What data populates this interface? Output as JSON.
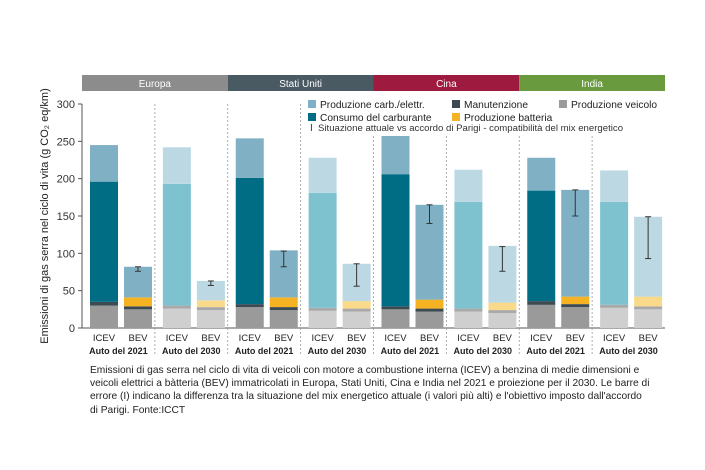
{
  "chart_data": {
    "type": "bar",
    "stacked": true,
    "ylabel": "Emissioni di gas serra nel ciclo di vita (g CO₂ eq/km)",
    "ylim": [
      0,
      300
    ],
    "yticks": [
      0,
      50,
      100,
      150,
      200,
      250,
      300
    ],
    "regions": [
      {
        "name": "Europa",
        "color": "#8c8c8c"
      },
      {
        "name": "Stati Uniti",
        "color": "#4a5a63"
      },
      {
        "name": "Cina",
        "color": "#9e1a3f"
      },
      {
        "name": "India",
        "color": "#6a9a3e"
      }
    ],
    "groups": [
      "Auto del 2021",
      "Auto del 2030"
    ],
    "vehicles": [
      "ICEV",
      "BEV"
    ],
    "legend": [
      {
        "key": "fuelprod",
        "label": "Produzione carb./elettr.",
        "color": "#7fb0c4"
      },
      {
        "key": "maint",
        "label": "Manutenzione",
        "color": "#3d4a52"
      },
      {
        "key": "vehicle",
        "label": "Produzione veicolo",
        "color": "#9a9a9a"
      },
      {
        "key": "fuel",
        "label": "Consumo del carburante",
        "color": "#006d85"
      },
      {
        "key": "battery",
        "label": "Produzione batteria",
        "color": "#f5b324"
      },
      {
        "key": "errbar",
        "label": "Situazione attuale  vs  accordo di Parigi - compatibilità del mix energetico",
        "symbol": "I"
      }
    ],
    "series_keys": [
      "vehicle",
      "maint",
      "battery",
      "fuel",
      "fuelprod"
    ],
    "bars": [
      {
        "region": "Europa",
        "group": "Auto del 2021",
        "label": "ICEV",
        "vehicle": 30,
        "maint": 5,
        "battery": 0,
        "fuel": 161,
        "fuelprod": 49,
        "err": null
      },
      {
        "region": "Europa",
        "group": "Auto del 2021",
        "label": "BEV",
        "vehicle": 25,
        "maint": 4,
        "battery": 12,
        "fuel": 0,
        "fuelprod": 41,
        "err": [
          76,
          82
        ]
      },
      {
        "region": "Europa",
        "group": "Auto del 2030",
        "label": "ICEV",
        "vehicle": 26,
        "maint": 4,
        "battery": 0,
        "fuel": 163,
        "fuelprod": 49,
        "err": null
      },
      {
        "region": "Europa",
        "group": "Auto del 2030",
        "label": "BEV",
        "vehicle": 24,
        "maint": 4,
        "battery": 9,
        "fuel": 0,
        "fuelprod": 26,
        "err": [
          57,
          63
        ]
      },
      {
        "region": "Stati Uniti",
        "group": "Auto del 2021",
        "label": "ICEV",
        "vehicle": 28,
        "maint": 4,
        "battery": 0,
        "fuel": 169,
        "fuelprod": 53,
        "err": null
      },
      {
        "region": "Stati Uniti",
        "group": "Auto del 2021",
        "label": "BEV",
        "vehicle": 24,
        "maint": 4,
        "battery": 13,
        "fuel": 0,
        "fuelprod": 63,
        "err": [
          82,
          103
        ]
      },
      {
        "region": "Stati Uniti",
        "group": "Auto del 2030",
        "label": "ICEV",
        "vehicle": 23,
        "maint": 4,
        "battery": 0,
        "fuel": 154,
        "fuelprod": 47,
        "err": null
      },
      {
        "region": "Stati Uniti",
        "group": "Auto del 2030",
        "label": "BEV",
        "vehicle": 22,
        "maint": 4,
        "battery": 10,
        "fuel": 0,
        "fuelprod": 50,
        "err": [
          56,
          86
        ]
      },
      {
        "region": "Cina",
        "group": "Auto del 2021",
        "label": "ICEV",
        "vehicle": 25,
        "maint": 4,
        "battery": 0,
        "fuel": 177,
        "fuelprod": 54,
        "err": null
      },
      {
        "region": "Cina",
        "group": "Auto del 2021",
        "label": "BEV",
        "vehicle": 22,
        "maint": 4,
        "battery": 12,
        "fuel": 0,
        "fuelprod": 127,
        "err": [
          140,
          165
        ]
      },
      {
        "region": "Cina",
        "group": "Auto del 2030",
        "label": "ICEV",
        "vehicle": 22,
        "maint": 4,
        "battery": 0,
        "fuel": 143,
        "fuelprod": 43,
        "err": null
      },
      {
        "region": "Cina",
        "group": "Auto del 2030",
        "label": "BEV",
        "vehicle": 20,
        "maint": 4,
        "battery": 10,
        "fuel": 0,
        "fuelprod": 76,
        "err": [
          76,
          109
        ]
      },
      {
        "region": "India",
        "group": "Auto del 2021",
        "label": "ICEV",
        "vehicle": 31,
        "maint": 5,
        "battery": 0,
        "fuel": 148,
        "fuelprod": 44,
        "err": null
      },
      {
        "region": "India",
        "group": "Auto del 2021",
        "label": "BEV",
        "vehicle": 28,
        "maint": 4,
        "battery": 10,
        "fuel": 0,
        "fuelprod": 143,
        "err": [
          150,
          185
        ]
      },
      {
        "region": "India",
        "group": "Auto del 2030",
        "label": "ICEV",
        "vehicle": 27,
        "maint": 4,
        "battery": 0,
        "fuel": 138,
        "fuelprod": 42,
        "err": null
      },
      {
        "region": "India",
        "group": "Auto del 2030",
        "label": "BEV",
        "vehicle": 25,
        "maint": 4,
        "battery": 13,
        "fuel": 0,
        "fuelprod": 107,
        "err": [
          93,
          149
        ]
      }
    ]
  },
  "caption": "Emissioni di gas serra nel ciclo di vita di veicoli con motore a combustione interna (ICEV) a benzina di medie dimensioni e veicoli elettrici a bàtteria (BEV) immatricolati in Europa, Stati Uniti, Cina e India nel 2021 e proiezione per il 2030. Le barre di errore (Ι) indicano la differenza tra la situazione del mix energetico attuale (i valori più alti) e l'obiettivo imposto dall'accordo di Parigi. Fonte:ICCT"
}
